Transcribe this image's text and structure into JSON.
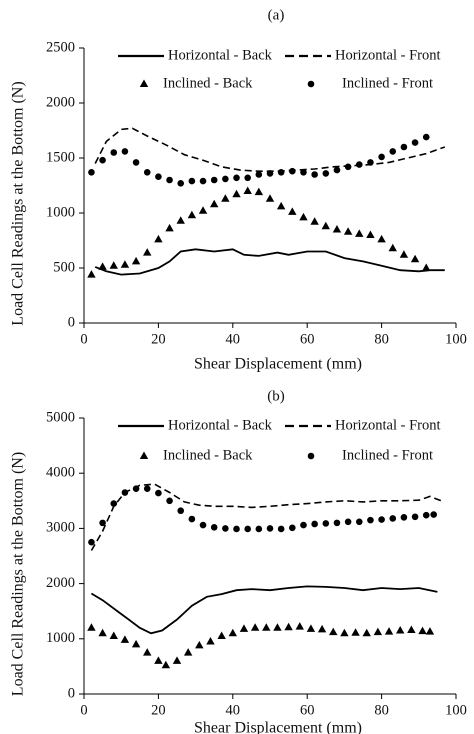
{
  "chart_data": [
    {
      "type": "line",
      "title": "(a)",
      "xlabel": "Shear Displacement (mm)",
      "ylabel": "Load Cell Readings at the Bottom  (N)",
      "xlim": [
        0,
        100
      ],
      "ylim": [
        0,
        2500
      ],
      "xticks": [
        0,
        20,
        40,
        60,
        80,
        100
      ],
      "yticks": [
        0,
        500,
        1000,
        1500,
        2000,
        2500
      ],
      "series": [
        {
          "name": "Horizontal - Back",
          "color": "#000000",
          "line_style": "solid",
          "x": [
            3,
            6,
            10,
            15,
            20,
            23,
            26,
            30,
            35,
            40,
            43,
            47,
            52,
            55,
            60,
            65,
            70,
            75,
            80,
            85,
            90,
            93,
            97
          ],
          "values": [
            510,
            470,
            440,
            450,
            500,
            560,
            650,
            670,
            650,
            670,
            620,
            610,
            640,
            620,
            650,
            650,
            590,
            560,
            520,
            480,
            470,
            480,
            480
          ]
        },
        {
          "name": "Horizontal - Front",
          "color": "#000000",
          "line_style": "dashed",
          "x": [
            3,
            6,
            10,
            13,
            17,
            22,
            27,
            32,
            37,
            42,
            47,
            52,
            57,
            62,
            67,
            72,
            77,
            82,
            87,
            92,
            97
          ],
          "values": [
            1450,
            1650,
            1760,
            1770,
            1700,
            1620,
            1530,
            1480,
            1420,
            1390,
            1380,
            1380,
            1390,
            1400,
            1420,
            1430,
            1440,
            1460,
            1500,
            1540,
            1600
          ]
        },
        {
          "name": "Inclined - Back",
          "color": "#000000",
          "marker": "triangle",
          "x": [
            2,
            5,
            8,
            11,
            14,
            17,
            20,
            23,
            26,
            29,
            32,
            35,
            38,
            41,
            44,
            47,
            50,
            53,
            56,
            59,
            62,
            65,
            68,
            71,
            74,
            77,
            80,
            83,
            86,
            89,
            92
          ],
          "values": [
            440,
            510,
            520,
            530,
            560,
            640,
            760,
            860,
            930,
            980,
            1020,
            1080,
            1130,
            1170,
            1200,
            1190,
            1130,
            1060,
            1010,
            960,
            920,
            880,
            850,
            830,
            810,
            800,
            760,
            680,
            620,
            580,
            500
          ]
        },
        {
          "name": "Inclined - Front",
          "color": "#000000",
          "marker": "circle",
          "x": [
            2,
            5,
            8,
            11,
            14,
            17,
            20,
            23,
            26,
            29,
            32,
            35,
            38,
            41,
            44,
            47,
            50,
            53,
            56,
            59,
            62,
            65,
            68,
            71,
            74,
            77,
            80,
            83,
            86,
            89,
            92
          ],
          "values": [
            1370,
            1480,
            1550,
            1560,
            1460,
            1370,
            1330,
            1300,
            1270,
            1290,
            1290,
            1300,
            1310,
            1320,
            1320,
            1350,
            1360,
            1370,
            1380,
            1370,
            1350,
            1360,
            1390,
            1420,
            1440,
            1460,
            1510,
            1560,
            1600,
            1640,
            1690
          ]
        }
      ]
    },
    {
      "type": "line",
      "title": "(b)",
      "xlabel": "Shear Displacement (mm)",
      "ylabel": "Load Cell Readings at the Bottom  (N)",
      "xlim": [
        0,
        100
      ],
      "ylim": [
        0,
        5000
      ],
      "xticks": [
        0,
        20,
        40,
        60,
        80,
        100
      ],
      "yticks": [
        0,
        1000,
        2000,
        3000,
        4000,
        5000
      ],
      "series": [
        {
          "name": "Horizontal - Back",
          "color": "#000000",
          "line_style": "solid",
          "x": [
            2,
            5,
            10,
            15,
            18,
            21,
            25,
            29,
            33,
            37,
            41,
            45,
            50,
            55,
            60,
            65,
            70,
            75,
            80,
            85,
            90,
            95
          ],
          "values": [
            1820,
            1700,
            1450,
            1200,
            1100,
            1150,
            1350,
            1600,
            1760,
            1810,
            1880,
            1900,
            1880,
            1920,
            1950,
            1940,
            1920,
            1880,
            1920,
            1900,
            1920,
            1850
          ]
        },
        {
          "name": "Horizontal - Front",
          "color": "#000000",
          "line_style": "dashed",
          "x": [
            2,
            5,
            8,
            11,
            15,
            19,
            23,
            27,
            31,
            35,
            40,
            45,
            50,
            55,
            60,
            65,
            70,
            75,
            80,
            85,
            90,
            93,
            96
          ],
          "values": [
            2600,
            2950,
            3400,
            3650,
            3780,
            3800,
            3650,
            3480,
            3420,
            3400,
            3400,
            3380,
            3400,
            3430,
            3450,
            3480,
            3500,
            3480,
            3500,
            3500,
            3510,
            3580,
            3500
          ]
        },
        {
          "name": "Inclined - Back",
          "color": "#000000",
          "marker": "triangle",
          "x": [
            2,
            5,
            8,
            11,
            14,
            17,
            20,
            22,
            25,
            28,
            31,
            34,
            37,
            40,
            43,
            46,
            49,
            52,
            55,
            58,
            61,
            64,
            67,
            70,
            73,
            76,
            79,
            82,
            85,
            88,
            91,
            93
          ],
          "values": [
            1200,
            1100,
            1050,
            980,
            900,
            750,
            600,
            520,
            600,
            750,
            880,
            950,
            1050,
            1100,
            1180,
            1200,
            1200,
            1200,
            1210,
            1220,
            1180,
            1170,
            1120,
            1100,
            1110,
            1100,
            1120,
            1130,
            1150,
            1160,
            1140,
            1130
          ]
        },
        {
          "name": "Inclined - Front",
          "color": "#000000",
          "marker": "circle",
          "x": [
            2,
            5,
            8,
            11,
            14,
            17,
            20,
            23,
            26,
            29,
            32,
            35,
            38,
            41,
            44,
            47,
            50,
            53,
            56,
            59,
            62,
            65,
            68,
            71,
            74,
            77,
            80,
            83,
            86,
            89,
            92,
            94
          ],
          "values": [
            2750,
            3100,
            3450,
            3650,
            3720,
            3720,
            3640,
            3500,
            3320,
            3170,
            3060,
            3020,
            3000,
            2990,
            2990,
            2990,
            3000,
            2990,
            3010,
            3060,
            3080,
            3090,
            3100,
            3120,
            3120,
            3150,
            3160,
            3180,
            3200,
            3210,
            3240,
            3250
          ]
        }
      ]
    }
  ]
}
